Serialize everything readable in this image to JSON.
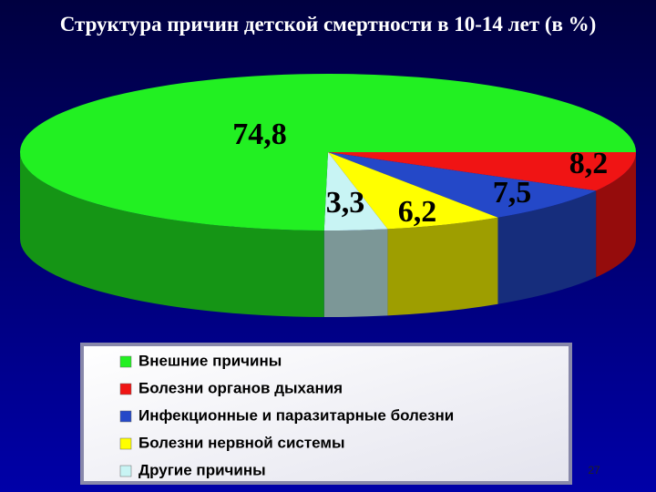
{
  "chart_data": {
    "type": "pie3d",
    "title": "Структура причин детской смертности в 10-14 лет (в %)",
    "categories": [
      "Внешние причины",
      "Болезни органов дыхания",
      "Инфекционные и паразитарные болезни",
      "Болезни нервной системы",
      "Другие причины"
    ],
    "values": [
      74.8,
      8.2,
      7.5,
      6.2,
      3.3
    ],
    "value_labels": [
      "74,8",
      "8,2",
      "7,5",
      "6,2",
      "3,3"
    ],
    "colors": [
      "#22f022",
      "#f01414",
      "#2448c8",
      "#ffff00",
      "#c8f4f4"
    ],
    "legend": "bottom"
  },
  "slide_number": "27"
}
